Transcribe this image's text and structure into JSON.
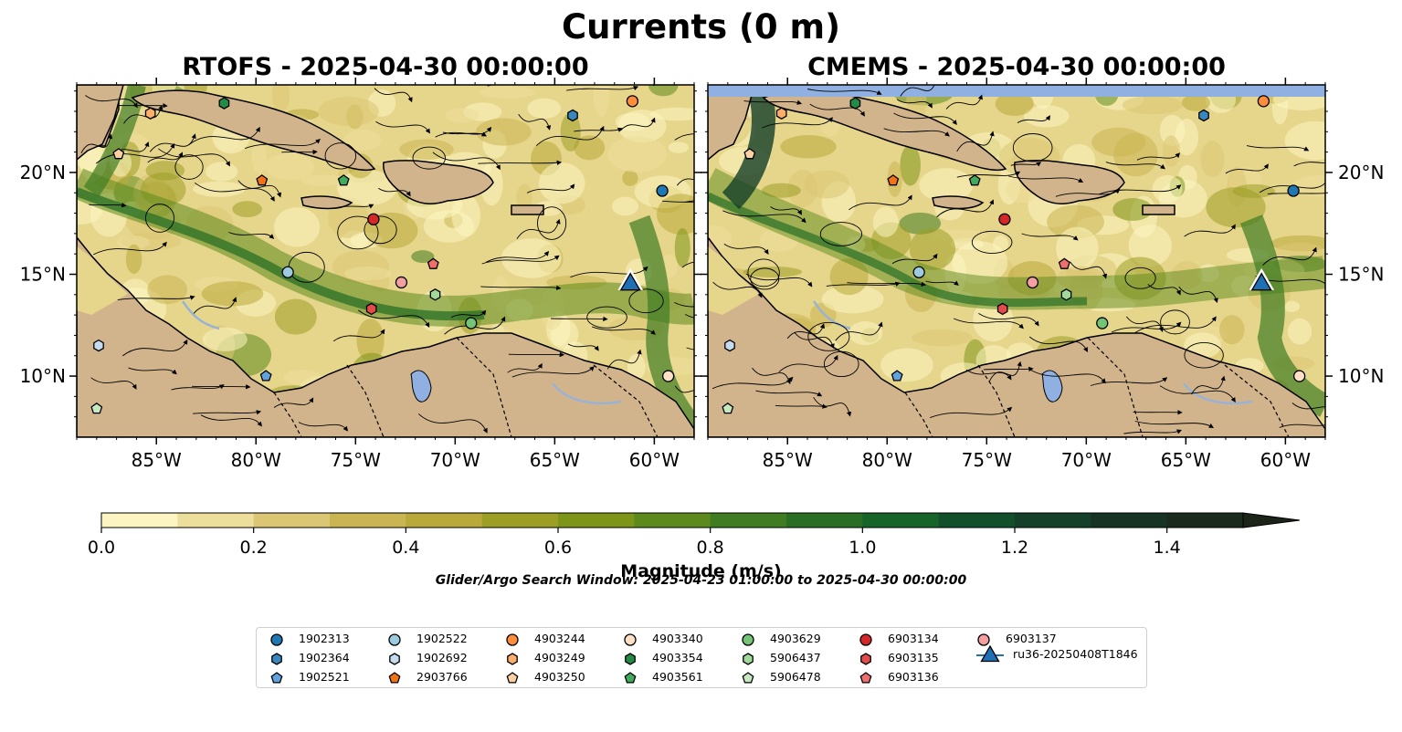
{
  "figure": {
    "title": "Currents (0 m)",
    "search_window": "Glider/Argo Search Window: 2025-04-23 01:00:00 to 2025-04-30 00:00:00"
  },
  "colors": {
    "land": "#d2b48c",
    "water_fill": "#8fb0e0",
    "river": "#9ab3d5",
    "coast": "#000000"
  },
  "chart_data": {
    "type": "heatmap",
    "description_type": "map",
    "xlim": [
      -89,
      -58
    ],
    "ylim": [
      7,
      24.3
    ],
    "x_ticks": [
      -85,
      -80,
      -75,
      -70,
      -65,
      -60
    ],
    "x_tick_labels": [
      "85°W",
      "80°W",
      "75°W",
      "70°W",
      "65°W",
      "60°W"
    ],
    "y_ticks": [
      10,
      15,
      20
    ],
    "y_tick_labels": [
      "10°N",
      "15°N",
      "20°N"
    ],
    "panels": [
      {
        "title": "RTOFS - 2025-04-30 00:00:00",
        "model": "RTOFS"
      },
      {
        "title": "CMEMS - 2025-04-30 00:00:00",
        "model": "CMEMS"
      }
    ],
    "colorbar": {
      "label": "Magnitude (m/s)",
      "min": 0.0,
      "max": 1.5,
      "extend": "max",
      "ticks": [
        0.0,
        0.2,
        0.4,
        0.6,
        0.8,
        1.0,
        1.2,
        1.4
      ],
      "tick_labels": [
        "0.0",
        "0.2",
        "0.4",
        "0.6",
        "0.8",
        "1.0",
        "1.2",
        "1.4"
      ],
      "bins": [
        {
          "from": 0.0,
          "to": 0.1,
          "color": "#fcf5c1"
        },
        {
          "from": 0.1,
          "to": 0.2,
          "color": "#ecde9b"
        },
        {
          "from": 0.2,
          "to": 0.3,
          "color": "#dbc673"
        },
        {
          "from": 0.3,
          "to": 0.4,
          "color": "#cab552"
        },
        {
          "from": 0.4,
          "to": 0.5,
          "color": "#b9a93a"
        },
        {
          "from": 0.5,
          "to": 0.6,
          "color": "#9c9e26"
        },
        {
          "from": 0.6,
          "to": 0.7,
          "color": "#7d9518"
        },
        {
          "from": 0.7,
          "to": 0.8,
          "color": "#5d8a1c"
        },
        {
          "from": 0.8,
          "to": 0.9,
          "color": "#3f7c22"
        },
        {
          "from": 0.9,
          "to": 1.0,
          "color": "#286f25"
        },
        {
          "from": 1.0,
          "to": 1.1,
          "color": "#166428"
        },
        {
          "from": 1.1,
          "to": 1.2,
          "color": "#11502a"
        },
        {
          "from": 1.2,
          "to": 1.3,
          "color": "#143f28"
        },
        {
          "from": 1.3,
          "to": 1.4,
          "color": "#173323"
        },
        {
          "from": 1.4,
          "to": 1.5,
          "color": "#1a2a1c"
        },
        {
          "from": 1.5,
          "to": null,
          "color": "#1c2418"
        }
      ]
    },
    "points": [
      {
        "id": "1902313",
        "marker": "circle",
        "color": "#1f77b4",
        "lon": -59.6,
        "lat": 19.1
      },
      {
        "id": "1902364",
        "marker": "hexagon",
        "color": "#3a87bf",
        "lon": -64.1,
        "lat": 22.8
      },
      {
        "id": "1902521",
        "marker": "pentagon",
        "color": "#5fa2dd",
        "lon": -79.5,
        "lat": 10.0
      },
      {
        "id": "1902522",
        "marker": "circle",
        "color": "#9ecae1",
        "lon": -78.4,
        "lat": 15.1
      },
      {
        "id": "1902692",
        "marker": "hexagon",
        "color": "#c6dbef",
        "lon": -87.9,
        "lat": 11.5
      },
      {
        "id": "2903766",
        "marker": "pentagon",
        "color": "#f27315",
        "lon": -79.7,
        "lat": 19.6
      },
      {
        "id": "4903244",
        "marker": "circle",
        "color": "#fd8d3c",
        "lon": -61.1,
        "lat": 23.5
      },
      {
        "id": "4903249",
        "marker": "hexagon",
        "color": "#fdae6b",
        "lon": -85.3,
        "lat": 22.9
      },
      {
        "id": "4903250",
        "marker": "pentagon",
        "color": "#fdd0a2",
        "lon": -86.9,
        "lat": 20.9
      },
      {
        "id": "4903340",
        "marker": "circle",
        "color": "#fde0c5",
        "lon": -59.3,
        "lat": 10.0
      },
      {
        "id": "4903354",
        "marker": "hexagon",
        "color": "#238b45",
        "lon": -81.6,
        "lat": 23.4
      },
      {
        "id": "4903561",
        "marker": "pentagon",
        "color": "#41ab5d",
        "lon": -75.6,
        "lat": 19.6
      },
      {
        "id": "4903629",
        "marker": "circle",
        "color": "#74c476",
        "lon": -69.2,
        "lat": 12.6
      },
      {
        "id": "5906437",
        "marker": "hexagon",
        "color": "#a1d99b",
        "lon": -71.0,
        "lat": 14.0
      },
      {
        "id": "5906478",
        "marker": "pentagon",
        "color": "#c7e9c0",
        "lon": -88.0,
        "lat": 8.4
      },
      {
        "id": "6903134",
        "marker": "circle",
        "color": "#d62728",
        "lon": -74.1,
        "lat": 17.7
      },
      {
        "id": "6903135",
        "marker": "hexagon",
        "color": "#e34a4a",
        "lon": -74.2,
        "lat": 13.3
      },
      {
        "id": "6903136",
        "marker": "pentagon",
        "color": "#ef6f6f",
        "lon": -71.1,
        "lat": 15.5
      },
      {
        "id": "6903137",
        "marker": "circle",
        "color": "#f4a0a0",
        "lon": -72.7,
        "lat": 14.6
      }
    ],
    "glider": {
      "id": "ru36-20250408T1846",
      "marker": "triangle",
      "color": "#1f6fb4",
      "lon": -61.2,
      "lat": 14.5
    }
  }
}
